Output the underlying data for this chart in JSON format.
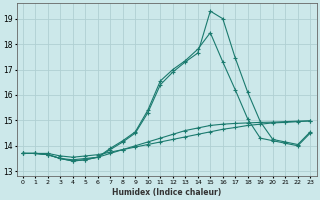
{
  "title": "",
  "xlabel": "Humidex (Indice chaleur)",
  "bg_color": "#cce8ea",
  "grid_color": "#b0d0d3",
  "line_color": "#1a7a6e",
  "xlim": [
    -0.5,
    23.5
  ],
  "ylim": [
    12.8,
    19.6
  ],
  "xticks": [
    0,
    1,
    2,
    3,
    4,
    5,
    6,
    7,
    8,
    9,
    10,
    11,
    12,
    13,
    14,
    15,
    16,
    17,
    18,
    19,
    20,
    21,
    22,
    23
  ],
  "yticks": [
    13,
    14,
    15,
    16,
    17,
    18,
    19
  ],
  "series": [
    {
      "x": [
        0,
        1,
        2,
        3,
        4,
        5,
        6,
        7,
        8,
        9,
        10,
        11,
        12,
        13,
        14,
        15,
        16,
        17,
        18,
        19,
        20,
        21,
        22,
        23
      ],
      "y": [
        13.7,
        13.7,
        13.7,
        13.6,
        13.55,
        13.6,
        13.65,
        13.75,
        13.85,
        13.95,
        14.05,
        14.15,
        14.25,
        14.35,
        14.45,
        14.55,
        14.65,
        14.72,
        14.8,
        14.85,
        14.9,
        14.92,
        14.95,
        14.98
      ]
    },
    {
      "x": [
        0,
        1,
        2,
        3,
        4,
        5,
        6,
        7,
        8,
        9,
        10,
        11,
        12,
        13,
        14,
        15,
        16,
        17,
        18,
        19,
        20,
        21,
        22,
        23
      ],
      "y": [
        13.7,
        13.7,
        13.65,
        13.5,
        13.45,
        13.5,
        13.55,
        13.7,
        13.85,
        14.0,
        14.15,
        14.3,
        14.45,
        14.6,
        14.7,
        14.8,
        14.85,
        14.88,
        14.9,
        14.92,
        14.93,
        14.95,
        14.97,
        14.98
      ]
    },
    {
      "x": [
        0,
        1,
        2,
        3,
        4,
        5,
        6,
        7,
        8,
        9,
        10,
        11,
        12,
        13,
        14,
        15,
        16,
        17,
        18,
        19,
        20,
        21,
        22,
        23
      ],
      "y": [
        13.7,
        13.7,
        13.65,
        13.5,
        13.4,
        13.45,
        13.55,
        13.9,
        14.2,
        14.55,
        15.4,
        16.55,
        17.0,
        17.35,
        17.8,
        18.45,
        17.3,
        16.2,
        15.05,
        14.3,
        14.2,
        14.1,
        14.0,
        14.5
      ]
    },
    {
      "x": [
        0,
        1,
        2,
        3,
        4,
        5,
        6,
        7,
        8,
        9,
        10,
        11,
        12,
        13,
        14,
        15,
        16,
        17,
        18,
        19,
        20,
        21,
        22,
        23
      ],
      "y": [
        13.7,
        13.7,
        13.65,
        13.5,
        13.4,
        13.45,
        13.55,
        13.85,
        14.15,
        14.5,
        15.3,
        16.4,
        16.9,
        17.3,
        17.65,
        19.3,
        19.0,
        17.45,
        16.1,
        14.95,
        14.25,
        14.15,
        14.05,
        14.55
      ]
    }
  ]
}
